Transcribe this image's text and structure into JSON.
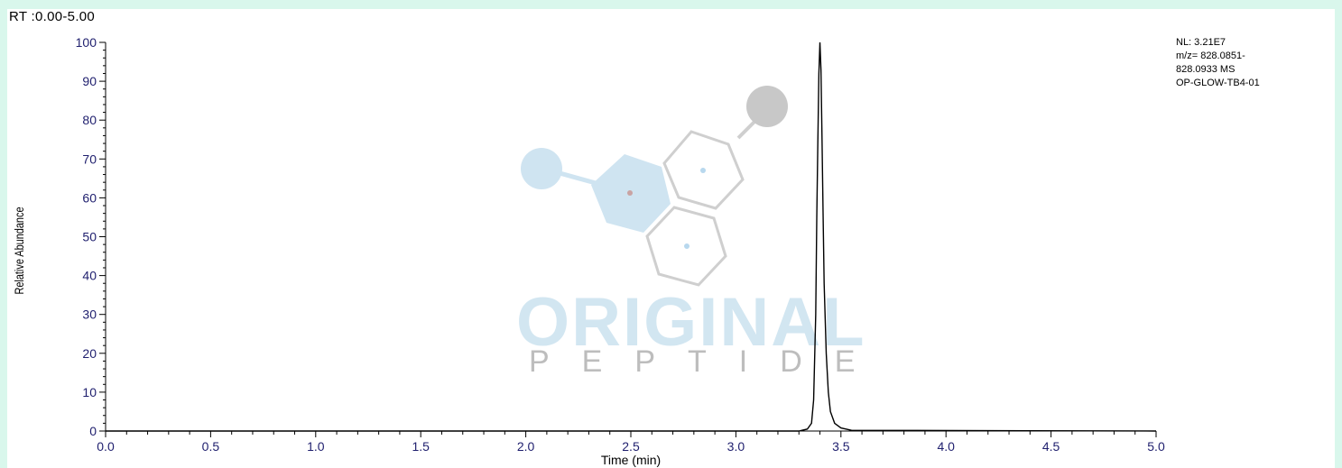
{
  "header": {
    "range_label": "RT :0.00-5.00"
  },
  "info_box": {
    "lines": [
      "NL: 3.21E7",
      "m/z= 828.0851-",
      "828.0933 MS",
      "OP-GLOW-TB4-01"
    ]
  },
  "watermark": {
    "title": "ORIGINAL",
    "subtitle": "PEPTIDE"
  },
  "colors": {
    "background": "#d9f7ec",
    "trace": "#000000",
    "tick_label": "#1f1f6e",
    "watermark_blue": "#cfe4f1",
    "watermark_grey": "#c8c8c8"
  },
  "chart_data": {
    "type": "line",
    "xlabel": "Time (min)",
    "ylabel": "Relative Abundance",
    "xlim": [
      0.0,
      5.0
    ],
    "ylim": [
      0,
      100
    ],
    "x_ticks": [
      "0.0",
      "0.5",
      "1.0",
      "1.5",
      "2.0",
      "2.5",
      "3.0",
      "3.5",
      "4.0",
      "4.5",
      "5.0"
    ],
    "y_ticks": [
      "0",
      "10",
      "20",
      "30",
      "40",
      "50",
      "60",
      "70",
      "80",
      "90",
      "100"
    ],
    "grid": false,
    "series": [
      {
        "x": [
          0.0,
          3.3,
          3.34,
          3.36,
          3.37,
          3.38,
          3.385,
          3.39,
          3.395,
          3.4,
          3.405,
          3.41,
          3.415,
          3.42,
          3.43,
          3.44,
          3.45,
          3.47,
          3.5,
          3.55,
          5.0
        ],
        "y": [
          0,
          0,
          0.5,
          2,
          8,
          30,
          55,
          74,
          92,
          100,
          93,
          75,
          56,
          38,
          20,
          10,
          5,
          2,
          0.8,
          0.2,
          0
        ]
      }
    ]
  }
}
